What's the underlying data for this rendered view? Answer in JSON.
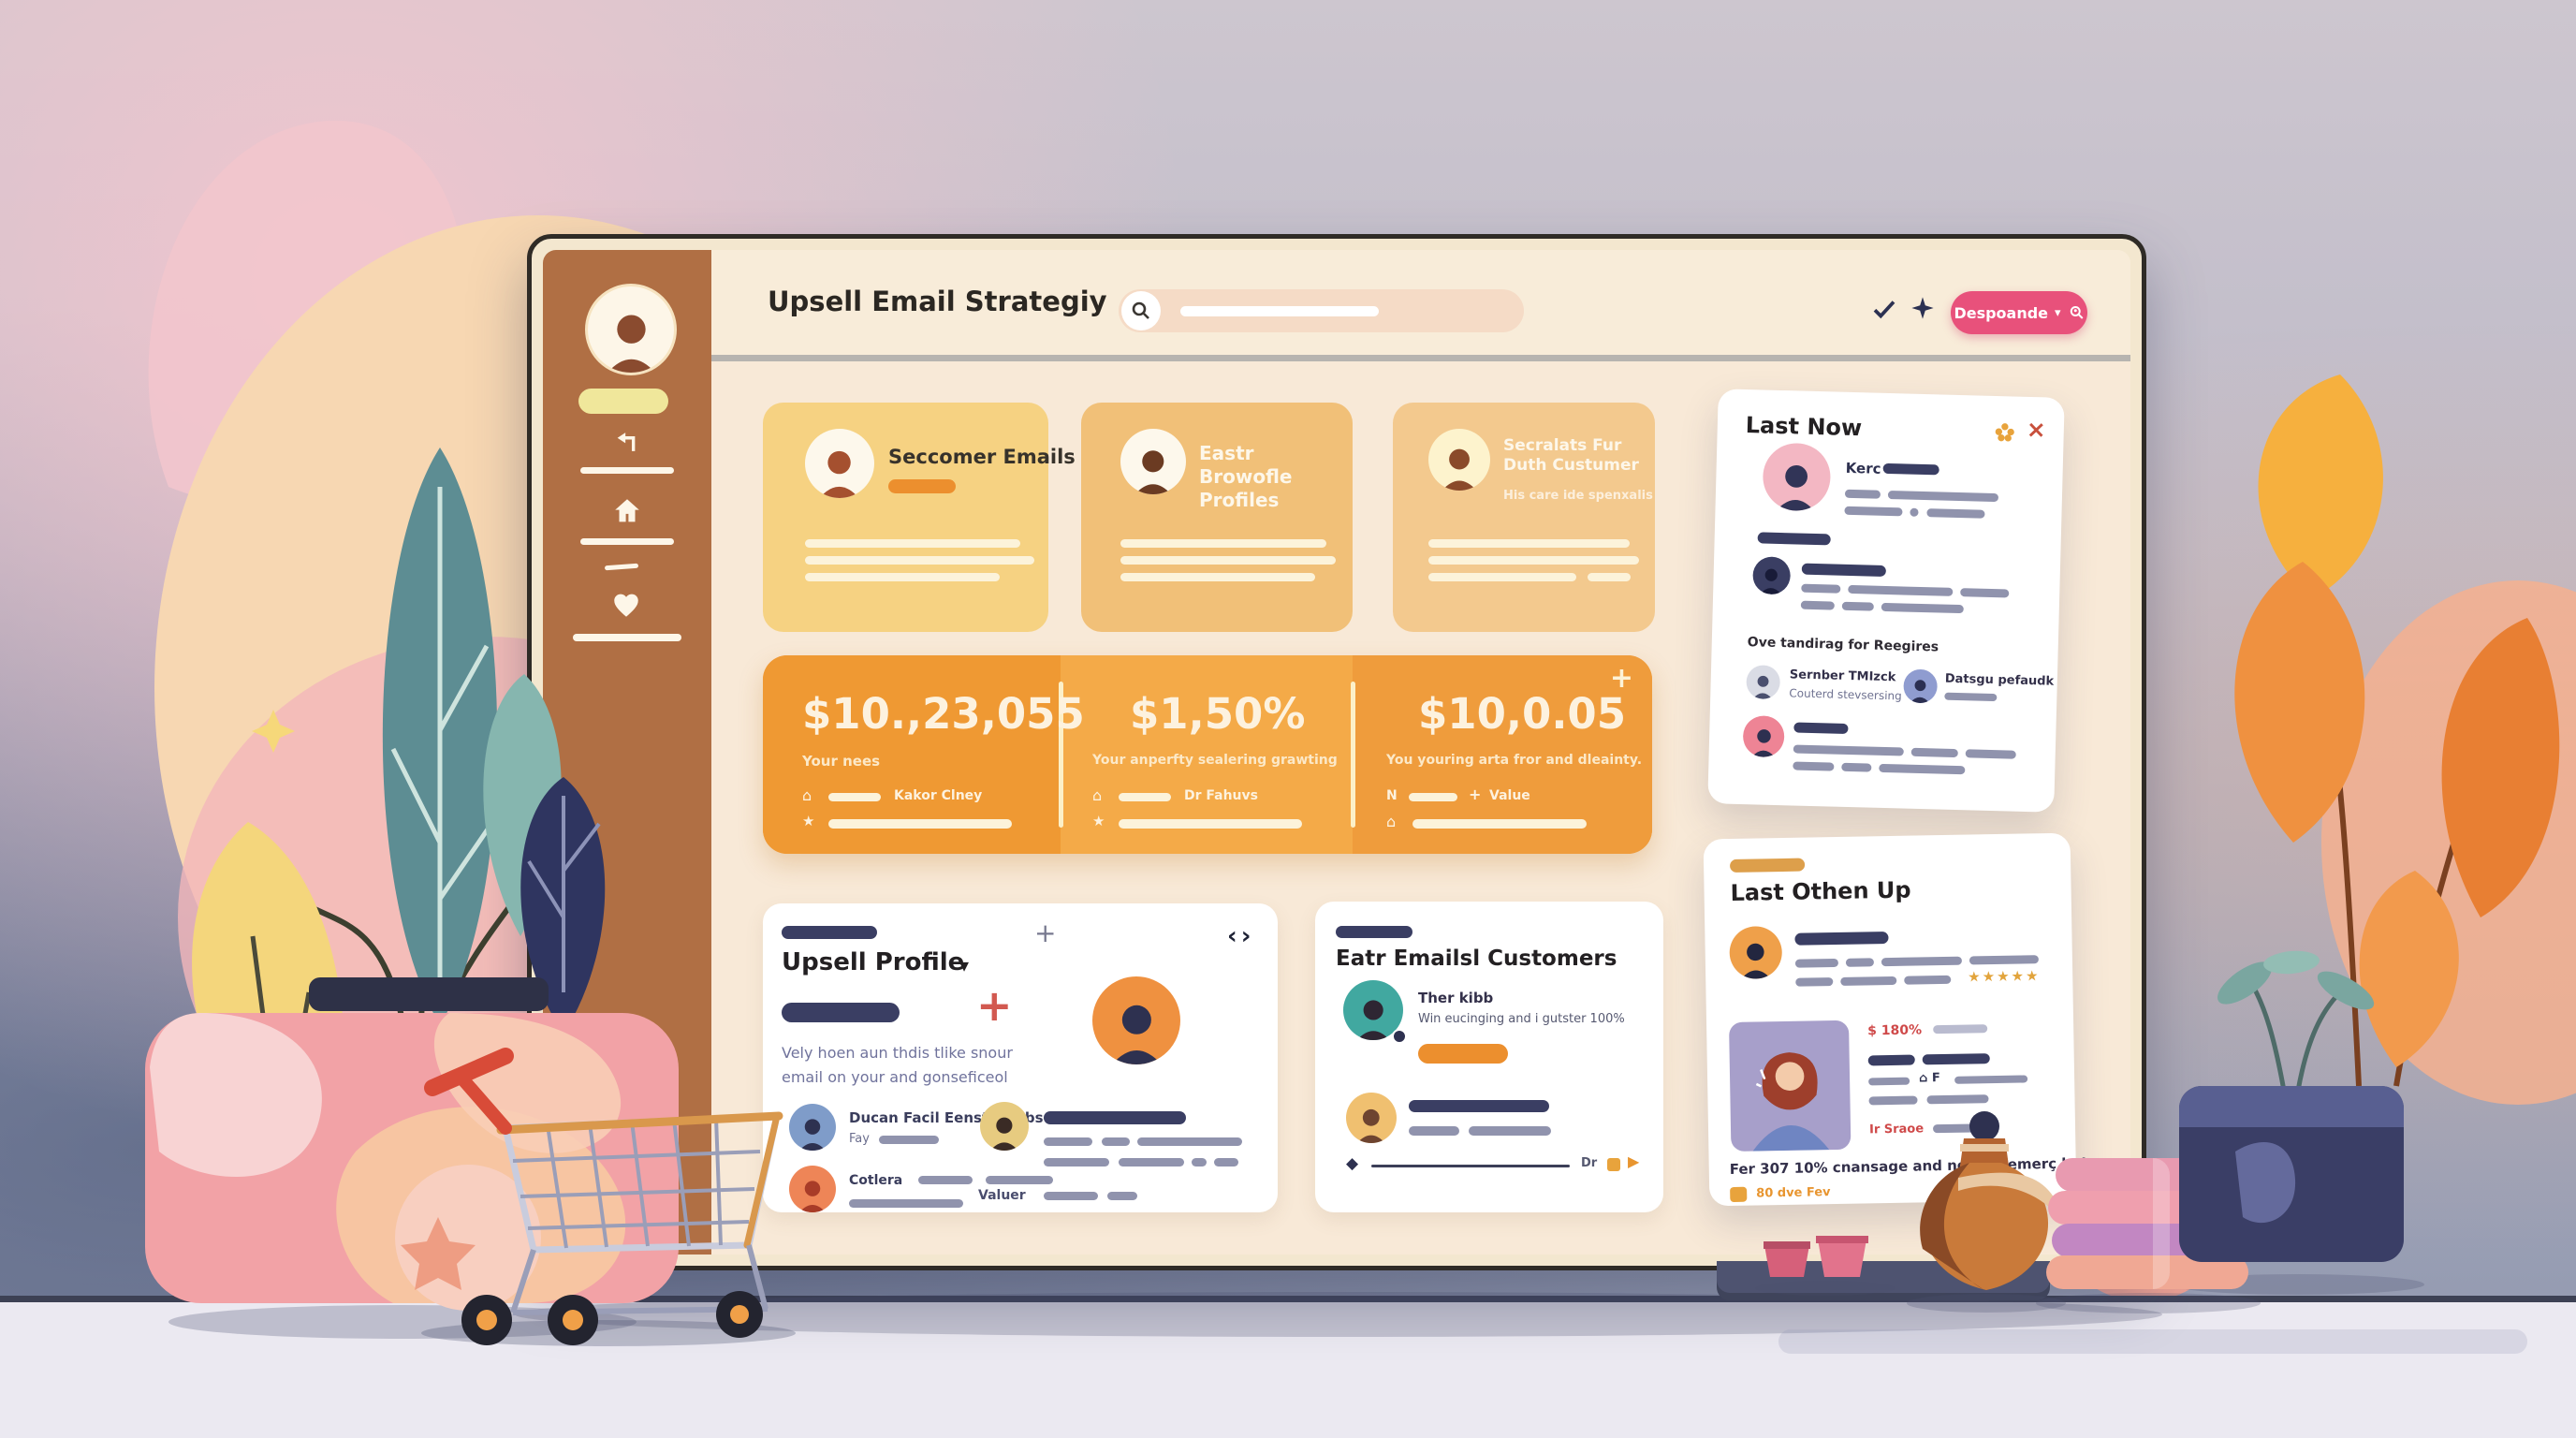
{
  "header": {
    "title": "Upsell Email Strategiy",
    "button_label": "Despoande"
  },
  "summary_cards": [
    {
      "title": "Seccomer Emails",
      "subtitle": ""
    },
    {
      "title": "Eastr Browofle Profiles",
      "subtitle": ""
    },
    {
      "title": "Secralats Fur Duth Custumer",
      "subtitle": "His care ide spenxalis"
    }
  ],
  "stats": [
    {
      "value": "$10.,23,055",
      "label": "Your nees",
      "row1_label": "Kakor Clney"
    },
    {
      "value": "$1,50%",
      "label": "Your anperfty sealering grawting",
      "row1_label": "Dr Fahuvs"
    },
    {
      "value": "$10,0.05",
      "label": "You youring arta fror and dleainty.",
      "row1_prefix": "N",
      "row1_label": "Value"
    }
  ],
  "upsell_profile": {
    "title": "Upsell Profile",
    "paragraph_line1": "Vely hoen aun thdis tlike snour",
    "paragraph_line2": "email on your and gonseficeol",
    "contact1_name": "Ducan Facil Eenster Slbs",
    "contact1_meta": "Fay",
    "contact2_name": "Cotlera",
    "value_label": "Valuer"
  },
  "eatr_customers": {
    "title": "Eatr Emailsl Customers",
    "contact_name": "Ther kibb",
    "contact_meta": "Win eucinging and i gutster 100%",
    "footer_label": "Dr"
  },
  "last_now": {
    "title": "Last Now",
    "lead_name": "Kerc",
    "section_title": "Ove tandirag for Reegires",
    "person1_name": "Sernber TMIzck",
    "person1_meta": "Couterd stevsersing",
    "person2_name": "Datsgu pefaudk"
  },
  "last_othen": {
    "title": "Last Othen Up",
    "stars": "★★★★★",
    "price_label": "$ 180%",
    "promo_label": "Ir Sraoe",
    "note": "Fer 307 10% cnansage and new culemerç by!",
    "footer_label": "80 dve Fev"
  },
  "colors": {
    "accent_pink": "#e8517b",
    "accent_orange": "#ee9a3a",
    "sidebar_brown": "#b06f44",
    "navy": "#3a3e63",
    "star_gold": "#e2a43c"
  }
}
